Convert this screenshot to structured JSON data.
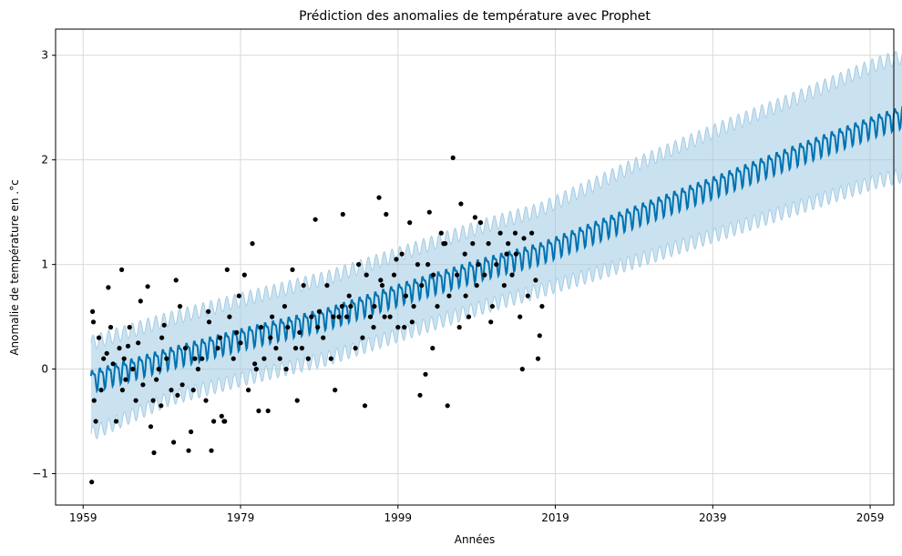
{
  "chart_data": {
    "type": "line",
    "title": "Prédiction des anomalies de température avec Prophet",
    "xlabel": "Années",
    "ylabel": "Anomalie de température en .°c",
    "xlim": [
      1955.5,
      1962.0
    ],
    "xlim_note": "",
    "x_range": [
      1955.5,
      2062.0
    ],
    "ylim": [
      -1.3,
      3.25
    ],
    "grid": true,
    "x_ticks": [
      1959,
      1979,
      1999,
      2019,
      2039,
      2059
    ],
    "x_tick_labels": [
      "1959",
      "1979",
      "1999",
      "2019",
      "2039",
      "2059"
    ],
    "y_ticks": [
      -1,
      0,
      1,
      2,
      3
    ],
    "y_tick_labels": [
      "−1",
      "0",
      "1",
      "2",
      "3"
    ],
    "series": [
      {
        "role": "forecast",
        "style": "line",
        "color": "#0072B2",
        "x": [
          1960,
          1970,
          1980,
          1990,
          2000,
          2010,
          2017,
          2030,
          2040,
          2050,
          2060,
          2066
        ],
        "values": [
          -0.1,
          0.12,
          0.32,
          0.5,
          0.75,
          0.98,
          1.12,
          1.5,
          1.78,
          2.07,
          2.35,
          2.5
        ]
      },
      {
        "role": "uncertainty_upper",
        "style": "band",
        "color": "#9ecae1",
        "x": [
          1960,
          1970,
          1980,
          1990,
          2000,
          2010,
          2017,
          2030,
          2040,
          2050,
          2060,
          2066
        ],
        "values": [
          0.25,
          0.48,
          0.68,
          0.87,
          1.12,
          1.37,
          1.52,
          1.98,
          2.3,
          2.6,
          2.92,
          3.05
        ]
      },
      {
        "role": "uncertainty_lower",
        "style": "band",
        "color": "#9ecae1",
        "x": [
          1960,
          1970,
          1980,
          1990,
          2000,
          2010,
          2017,
          2030,
          2040,
          2050,
          2060,
          2066
        ],
        "values": [
          -0.62,
          -0.28,
          -0.08,
          0.1,
          0.35,
          0.6,
          0.75,
          1.05,
          1.3,
          1.55,
          1.8,
          1.9
        ]
      },
      {
        "role": "observations",
        "style": "scatter",
        "color": "#000000",
        "x": [
          1960.1,
          1960.2,
          1960.6,
          1961.0,
          1961.3,
          1961.6,
          1962.0,
          1962.2,
          1962.8,
          1963.2,
          1963.6,
          1964.0,
          1964.4,
          1964.7,
          1965.3,
          1965.7,
          1966.0,
          1966.6,
          1967.2,
          1967.6,
          1968.0,
          1968.3,
          1968.6,
          1969.0,
          1969.6,
          1970.2,
          1970.5,
          1971.0,
          1971.6,
          1972.0,
          1972.7,
          1973.2,
          1973.6,
          1974.1,
          1974.6,
          1975.0,
          1975.6,
          1976.1,
          1976.6,
          1977.0,
          1977.6,
          1978.1,
          1978.5,
          1979.0,
          1979.5,
          1980.0,
          1980.5,
          1981.0,
          1981.6,
          1982.0,
          1982.5,
          1983.0,
          1983.5,
          1984.0,
          1984.6,
          1985.0,
          1985.6,
          1986.0,
          1986.5,
          1987.0,
          1987.6,
          1988.0,
          1988.5,
          1989.0,
          1989.5,
          1990.0,
          1990.5,
          1991.0,
          1991.5,
          1992.0,
          1992.5,
          1993.0,
          1993.6,
          1994.0,
          1994.5,
          1995.0,
          1995.5,
          1996.0,
          1996.6,
          1997.0,
          1997.5,
          1998.0,
          1998.5,
          1999.0,
          1999.5,
          2000.0,
          2000.5,
          2001.0,
          2001.5,
          2002.0,
          2002.5,
          2003.0,
          2003.5,
          2004.0,
          2004.5,
          2005.0,
          2005.5,
          2006.0,
          2006.5,
          2007.0,
          2007.5,
          2008.0,
          2008.5,
          2009.0,
          2009.5,
          2010.0,
          2010.5,
          2011.0,
          2011.5,
          2012.0,
          2012.5,
          2013.0,
          2013.5,
          2014.0,
          2014.5,
          2015.0,
          2015.5,
          2016.0,
          2016.5,
          2017.0,
          2017.3,
          1960.4,
          1962.5,
          1964.2,
          1966.3,
          1967.9,
          1969.3,
          1971.3,
          1973.0,
          1974.9,
          1976.9,
          1978.8,
          1980.8,
          1982.8,
          1984.8,
          1986.8,
          1988.8,
          1990.8,
          1992.8,
          1994.8,
          1996.8,
          1998.8,
          2000.8,
          2002.8,
          2004.8,
          2006.8,
          2008.8,
          2010.8,
          2012.8,
          2014.8,
          2016.8,
          1960.3,
          1964.9,
          1970.8,
          1976.4,
          1981.3,
          1986.2,
          1991.9,
          1997.3,
          2003.4,
          2009.2,
          2013.9,
          1968.9,
          1972.4,
          1975.3,
          1977.3,
          1995.9,
          2001.8,
          2007.6,
          1963.9,
          1999.8,
          2005.3
        ],
        "values": [
          -1.08,
          0.55,
          -0.5,
          0.3,
          -0.2,
          0.1,
          0.15,
          0.78,
          0.05,
          -0.5,
          0.2,
          -0.2,
          -0.1,
          0.22,
          0.0,
          -0.3,
          0.25,
          -0.15,
          0.79,
          -0.55,
          -0.8,
          -0.1,
          0.0,
          0.3,
          0.1,
          -0.2,
          -0.7,
          -0.25,
          -0.15,
          0.2,
          -0.6,
          0.1,
          0.0,
          0.1,
          -0.3,
          0.45,
          -0.5,
          0.2,
          -0.45,
          -0.5,
          0.5,
          0.1,
          0.35,
          0.25,
          0.9,
          -0.2,
          1.2,
          0.0,
          0.4,
          0.1,
          -0.4,
          0.5,
          0.2,
          0.1,
          0.6,
          0.4,
          0.95,
          0.2,
          0.35,
          0.8,
          0.1,
          0.5,
          1.43,
          0.55,
          0.3,
          0.8,
          0.1,
          -0.2,
          0.5,
          1.48,
          0.5,
          0.6,
          0.2,
          1.0,
          0.3,
          0.9,
          0.5,
          0.6,
          1.64,
          0.8,
          1.48,
          0.5,
          0.9,
          0.4,
          1.1,
          0.7,
          1.4,
          0.6,
          1.0,
          0.8,
          -0.05,
          1.5,
          0.9,
          0.6,
          1.3,
          1.2,
          0.7,
          2.02,
          0.9,
          1.58,
          1.1,
          0.5,
          1.2,
          0.8,
          1.4,
          0.9,
          1.2,
          0.6,
          1.0,
          1.3,
          0.8,
          1.2,
          0.9,
          1.1,
          0.5,
          1.25,
          0.7,
          1.3,
          0.85,
          0.32,
          0.6,
          -0.3,
          0.4,
          0.1,
          0.65,
          -0.3,
          0.42,
          0.6,
          -0.2,
          0.55,
          -0.5,
          0.7,
          0.05,
          0.3,
          0.0,
          0.2,
          0.4,
          0.5,
          0.7,
          -0.35,
          0.85,
          1.05,
          0.45,
          1.0,
          1.2,
          0.4,
          1.45,
          0.45,
          1.1,
          0.0,
          0.1,
          0.45,
          0.4,
          0.85,
          0.3,
          -0.4,
          -0.3,
          0.6,
          0.5,
          0.2,
          1.0,
          1.3,
          -0.35,
          -0.78,
          -0.78,
          0.95,
          0.4,
          -0.25,
          0.7,
          0.95,
          0.4,
          -0.35
        ]
      }
    ]
  }
}
